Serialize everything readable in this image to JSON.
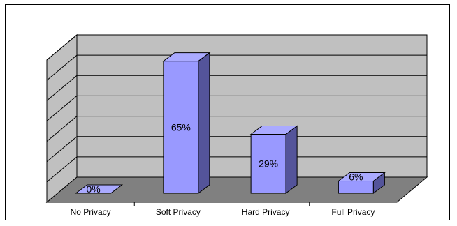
{
  "chart_data": {
    "type": "bar",
    "style": "3d-column",
    "categories": [
      "No Privacy",
      "Soft Privacy",
      "Hard Privacy",
      "Full Privacy"
    ],
    "values": [
      0,
      65,
      29,
      6
    ],
    "data_labels": [
      "0%",
      "65%",
      "29%",
      "6%"
    ],
    "ylim": [
      0,
      70
    ],
    "y_gridline_step": 10,
    "grid": true,
    "legend": "none",
    "colors": {
      "bar_front": "#9999ff",
      "bar_top": "#aaaaff",
      "bar_side": "#54549a",
      "back_wall": "#c0c0c0",
      "side_wall": "#c0c0c0",
      "floor": "#808080",
      "gridline": "#000000"
    }
  }
}
